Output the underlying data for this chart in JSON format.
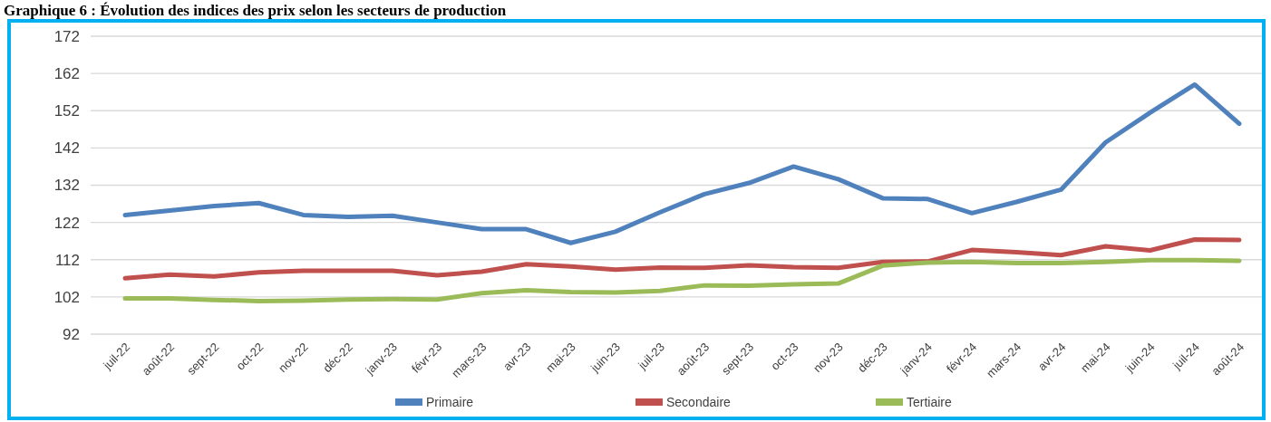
{
  "chart_data": {
    "type": "line",
    "title": "Graphique 6 : Évolution des indices des prix selon les secteurs de production",
    "categories": [
      "juil-22",
      "août-22",
      "sept-22",
      "oct-22",
      "nov-22",
      "déc-22",
      "janv-23",
      "févr-23",
      "mars-23",
      "avr-23",
      "mai-23",
      "juin-23",
      "juil-23",
      "août-23",
      "sept-23",
      "oct-23",
      "nov-23",
      "déc-23",
      "janv-24",
      "févr-24",
      "mars-24",
      "avr-24",
      "mai-24",
      "juin-24",
      "juil-24",
      "août-24"
    ],
    "series": [
      {
        "name": "Primaire",
        "color": "#4f81bd",
        "values": [
          124.0,
          125.2,
          126.4,
          127.2,
          124.0,
          123.5,
          123.8,
          122.0,
          120.2,
          120.2,
          116.5,
          119.5,
          124.7,
          129.6,
          132.6,
          137.0,
          133.6,
          128.5,
          128.3,
          124.5,
          127.5,
          130.8,
          143.5,
          151.5,
          159.0,
          148.5
        ]
      },
      {
        "name": "Secondaire",
        "color": "#c0504d",
        "values": [
          107.0,
          108.0,
          107.5,
          108.6,
          109.0,
          109.0,
          109.0,
          107.8,
          108.8,
          110.8,
          110.2,
          109.3,
          109.9,
          109.8,
          110.5,
          110.0,
          109.8,
          111.4,
          111.5,
          114.6,
          114.0,
          113.2,
          115.6,
          114.5,
          117.4,
          117.3
        ]
      },
      {
        "name": "Tertiaire",
        "color": "#9bbb59",
        "values": [
          101.6,
          101.6,
          101.2,
          100.9,
          101.0,
          101.3,
          101.4,
          101.3,
          103.0,
          103.8,
          103.3,
          103.2,
          103.6,
          105.1,
          105.0,
          105.4,
          105.6,
          110.4,
          111.2,
          111.4,
          111.1,
          111.1,
          111.4,
          111.9,
          111.9,
          111.7
        ]
      }
    ],
    "ylim": [
      92,
      172
    ],
    "yticks": [
      92,
      102,
      112,
      122,
      132,
      142,
      152,
      162,
      172
    ],
    "grid": "y",
    "legend": "bottom",
    "marker": "none",
    "line_style": "solid"
  }
}
